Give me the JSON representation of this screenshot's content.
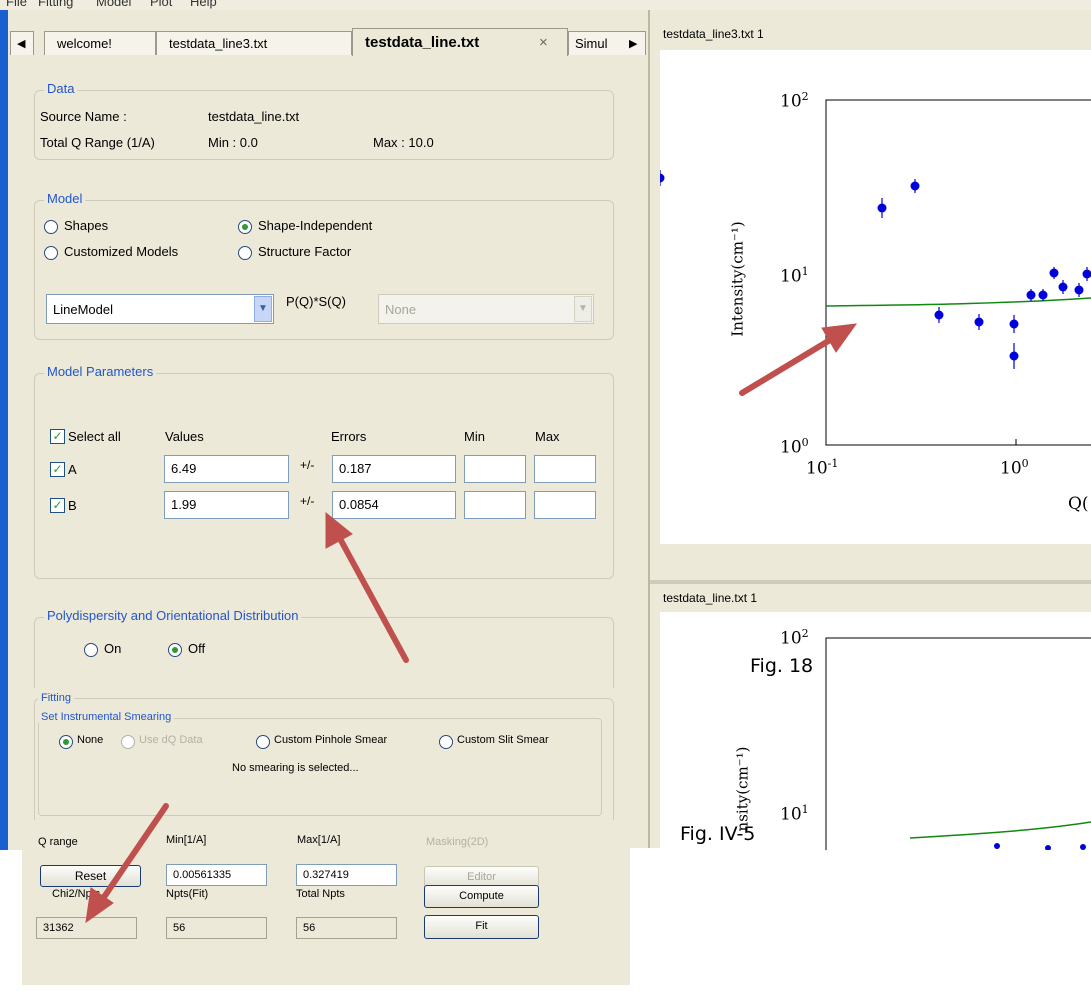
{
  "menubar": {
    "items": [
      "File",
      "Fitting",
      "Model",
      "Plot",
      "Help"
    ]
  },
  "tabs": [
    {
      "label": "welcome!"
    },
    {
      "label": "testdata_line3.txt"
    },
    {
      "label": "testdata_line.txt",
      "close": "×"
    },
    {
      "label": "Simul"
    }
  ],
  "data_group": {
    "title": "Data",
    "source_label": "Source Name :",
    "source_value": "testdata_line.txt",
    "range_label": "Total Q Range (1/A)",
    "min_text": "Min : 0.0",
    "max_text": "Max : 10.0"
  },
  "model_group": {
    "title": "Model",
    "radios": [
      {
        "label": "Shapes",
        "selected": false
      },
      {
        "label": "Shape-Independent",
        "selected": true
      },
      {
        "label": "Customized Models",
        "selected": false
      },
      {
        "label": "Structure Factor",
        "selected": false
      }
    ],
    "model_select": "LineModel",
    "pq_label": "P(Q)*S(Q)",
    "sq_select": "None"
  },
  "params_group": {
    "title": "Model Parameters",
    "select_all": "Select all",
    "col_values": "Values",
    "col_errors": "Errors",
    "col_min": "Min",
    "col_max": "Max",
    "pm": "+/-",
    "rows": [
      {
        "name": "A",
        "value": "6.49",
        "error": "0.187",
        "checked": true
      },
      {
        "name": "B",
        "value": "1.99",
        "error": "0.0854",
        "checked": true
      }
    ]
  },
  "poly_group": {
    "title": "Polydispersity and Orientational Distribution",
    "on": "On",
    "off": "Off",
    "selected": "Off"
  },
  "fitting_group": {
    "title": "Fitting",
    "smear_title": "Set Instrumental Smearing",
    "smear_options": [
      "None",
      "Use dQ Data",
      "Custom Pinhole Smear",
      "Custom Slit Smear"
    ],
    "smear_selected": "None",
    "smear_status": "No smearing is selected...",
    "q_range": "Q range",
    "min_header": "Min[1/A]",
    "max_header": "Max[1/A]",
    "masking_header": "Masking(2D)",
    "reset": "Reset",
    "q_min": "0.00561335",
    "q_max": "0.327419",
    "editor": "Editor",
    "chi2_label": "Chi2/Npts",
    "npts_fit_label": "Npts(Fit)",
    "total_npts_label": "Total Npts",
    "compute": "Compute",
    "chi2": "31362",
    "npts_fit": "56",
    "total_npts": "56",
    "fit": "Fit"
  },
  "plot1": {
    "header": "testdata_line3.txt 1",
    "ylabel": "Intensity(cm⁻¹)",
    "xlabel_partial": "Q(",
    "yticks": [
      "10",
      "10",
      "10"
    ],
    "ytick_exps": [
      "2",
      "1",
      "0"
    ],
    "xticks": [
      "10",
      "10"
    ],
    "xtick_exps": [
      "-1",
      "0"
    ]
  },
  "plot2": {
    "header": "testdata_line.txt 1",
    "ylabel": "nsity(cm⁻¹)",
    "yticks": [
      "10",
      "10"
    ],
    "ytick_exps": [
      "2",
      "1"
    ]
  },
  "captions": {
    "fig18": "Fig. 18",
    "fig_iv5": "Fig. IV-5"
  },
  "colors": {
    "accent": "#2255cc",
    "arrow": "#c0504d",
    "data_point": "#0000dd",
    "fit_line": "#118811"
  }
}
